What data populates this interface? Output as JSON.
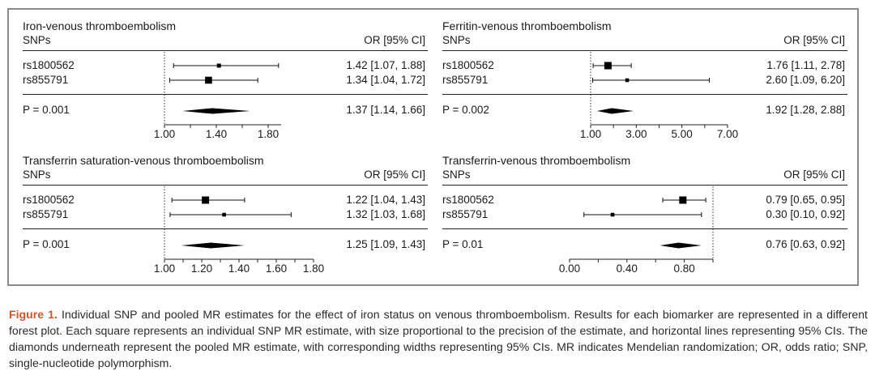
{
  "panels": [
    {
      "title": "Iron-venous thromboembolism",
      "col_snps": "SNPs",
      "col_or": "OR [95% CI]",
      "rows": [
        {
          "snp": "rs1800562",
          "or_text": "1.42 [1.07, 1.88]"
        },
        {
          "snp": "rs855791",
          "or_text": "1.34 [1.04, 1.72]"
        }
      ],
      "pvalue": "P = 0.001",
      "pooled_text": "1.37 [1.14, 1.66]",
      "tick_labels": [
        "1.00",
        "1.40",
        "1.80"
      ]
    },
    {
      "title": "Ferritin-venous thromboembolism",
      "col_snps": "SNPs",
      "col_or": "OR [95% CI]",
      "rows": [
        {
          "snp": "rs1800562",
          "or_text": "1.76 [1.11, 2.78]"
        },
        {
          "snp": "rs855791",
          "or_text": "2.60 [1.09, 6.20]"
        }
      ],
      "pvalue": "P = 0.002",
      "pooled_text": "1.92 [1.28, 2.88]",
      "tick_labels": [
        "1.00",
        "3.00",
        "5.00",
        "7.00"
      ]
    },
    {
      "title": "Transferrin saturation-venous thromboembolism",
      "col_snps": "SNPs",
      "col_or": "OR [95% CI]",
      "rows": [
        {
          "snp": "rs1800562",
          "or_text": "1.22 [1.04, 1.43]"
        },
        {
          "snp": "rs855791",
          "or_text": "1.32 [1.03, 1.68]"
        }
      ],
      "pvalue": "P = 0.001",
      "pooled_text": "1.25 [1.09, 1.43]",
      "tick_labels": [
        "1.00",
        "1.20",
        "1.40",
        "1.60",
        "1.80"
      ]
    },
    {
      "title": "Transferrin-venous thromboembolism",
      "col_snps": "SNPs",
      "col_or": "OR [95% CI]",
      "rows": [
        {
          "snp": "rs1800562",
          "or_text": "0.79 [0.65, 0.95]"
        },
        {
          "snp": "rs855791",
          "or_text": "0.30 [0.10, 0.92]"
        }
      ],
      "pvalue": "P = 0.01",
      "pooled_text": "0.76 [0.63, 0.92]",
      "tick_labels": [
        "0.00",
        "0.40",
        "0.80"
      ]
    }
  ],
  "chart_data": [
    {
      "type": "forest",
      "title": "Iron-venous thromboembolism",
      "xlim": [
        1.0,
        1.9
      ],
      "ticks": [
        1.0,
        1.2,
        1.4,
        1.6,
        1.8
      ],
      "reference_line": 1.0,
      "snps": [
        {
          "name": "rs1800562",
          "or": 1.42,
          "lo": 1.07,
          "hi": 1.88,
          "weight": 0.25
        },
        {
          "name": "rs855791",
          "or": 1.34,
          "lo": 1.04,
          "hi": 1.72,
          "weight": 0.7
        }
      ],
      "pooled": {
        "or": 1.37,
        "lo": 1.14,
        "hi": 1.66,
        "p": "0.001"
      }
    },
    {
      "type": "forest",
      "title": "Ferritin-venous thromboembolism",
      "xlim": [
        1.0,
        7.0
      ],
      "ticks": [
        1,
        2,
        3,
        4,
        5,
        6,
        7
      ],
      "reference_line": 1.0,
      "snps": [
        {
          "name": "rs1800562",
          "or": 1.76,
          "lo": 1.11,
          "hi": 2.78,
          "weight": 0.75
        },
        {
          "name": "rs855791",
          "or": 2.6,
          "lo": 1.09,
          "hi": 6.2,
          "weight": 0.2
        }
      ],
      "pooled": {
        "or": 1.92,
        "lo": 1.28,
        "hi": 2.88,
        "p": "0.002"
      }
    },
    {
      "type": "forest",
      "title": "Transferrin saturation-venous thromboembolism",
      "xlim": [
        1.0,
        1.8
      ],
      "ticks": [
        1.0,
        1.1,
        1.2,
        1.3,
        1.4,
        1.5,
        1.6,
        1.7,
        1.8
      ],
      "reference_line": 1.0,
      "snps": [
        {
          "name": "rs1800562",
          "or": 1.22,
          "lo": 1.04,
          "hi": 1.43,
          "weight": 0.75
        },
        {
          "name": "rs855791",
          "or": 1.32,
          "lo": 1.03,
          "hi": 1.68,
          "weight": 0.2
        }
      ],
      "pooled": {
        "or": 1.25,
        "lo": 1.09,
        "hi": 1.43,
        "p": "0.001"
      }
    },
    {
      "type": "forest",
      "title": "Transferrin-venous thromboembolism",
      "xlim": [
        0.0,
        1.0
      ],
      "ticks": [
        0.0,
        0.2,
        0.4,
        0.6,
        0.8,
        1.0
      ],
      "reference_line": 1.0,
      "snps": [
        {
          "name": "rs1800562",
          "or": 0.79,
          "lo": 0.65,
          "hi": 0.95,
          "weight": 0.75
        },
        {
          "name": "rs855791",
          "or": 0.3,
          "lo": 0.1,
          "hi": 0.92,
          "weight": 0.2
        }
      ],
      "pooled": {
        "or": 0.76,
        "lo": 0.63,
        "hi": 0.92,
        "p": "0.01"
      }
    }
  ],
  "caption": {
    "label": "Figure 1.",
    "text": "Individual SNP and pooled MR estimates for the effect of iron status on venous thromboembolism. Results for each biomarker are represented in a different forest plot. Each square represents an individual SNP MR estimate, with size proportional to the precision of the estimate, and horizontal lines representing 95% CIs. The diamonds underneath represent the pooled MR estimate, with corresponding widths representing 95% CIs. MR indicates Mendelian randomization; OR, odds ratio; SNP, single-nucleotide polymorphism."
  },
  "colors": {
    "frame": "#8a8a8a",
    "caption_label": "#d4552a",
    "ink": "#1a1a1a"
  }
}
